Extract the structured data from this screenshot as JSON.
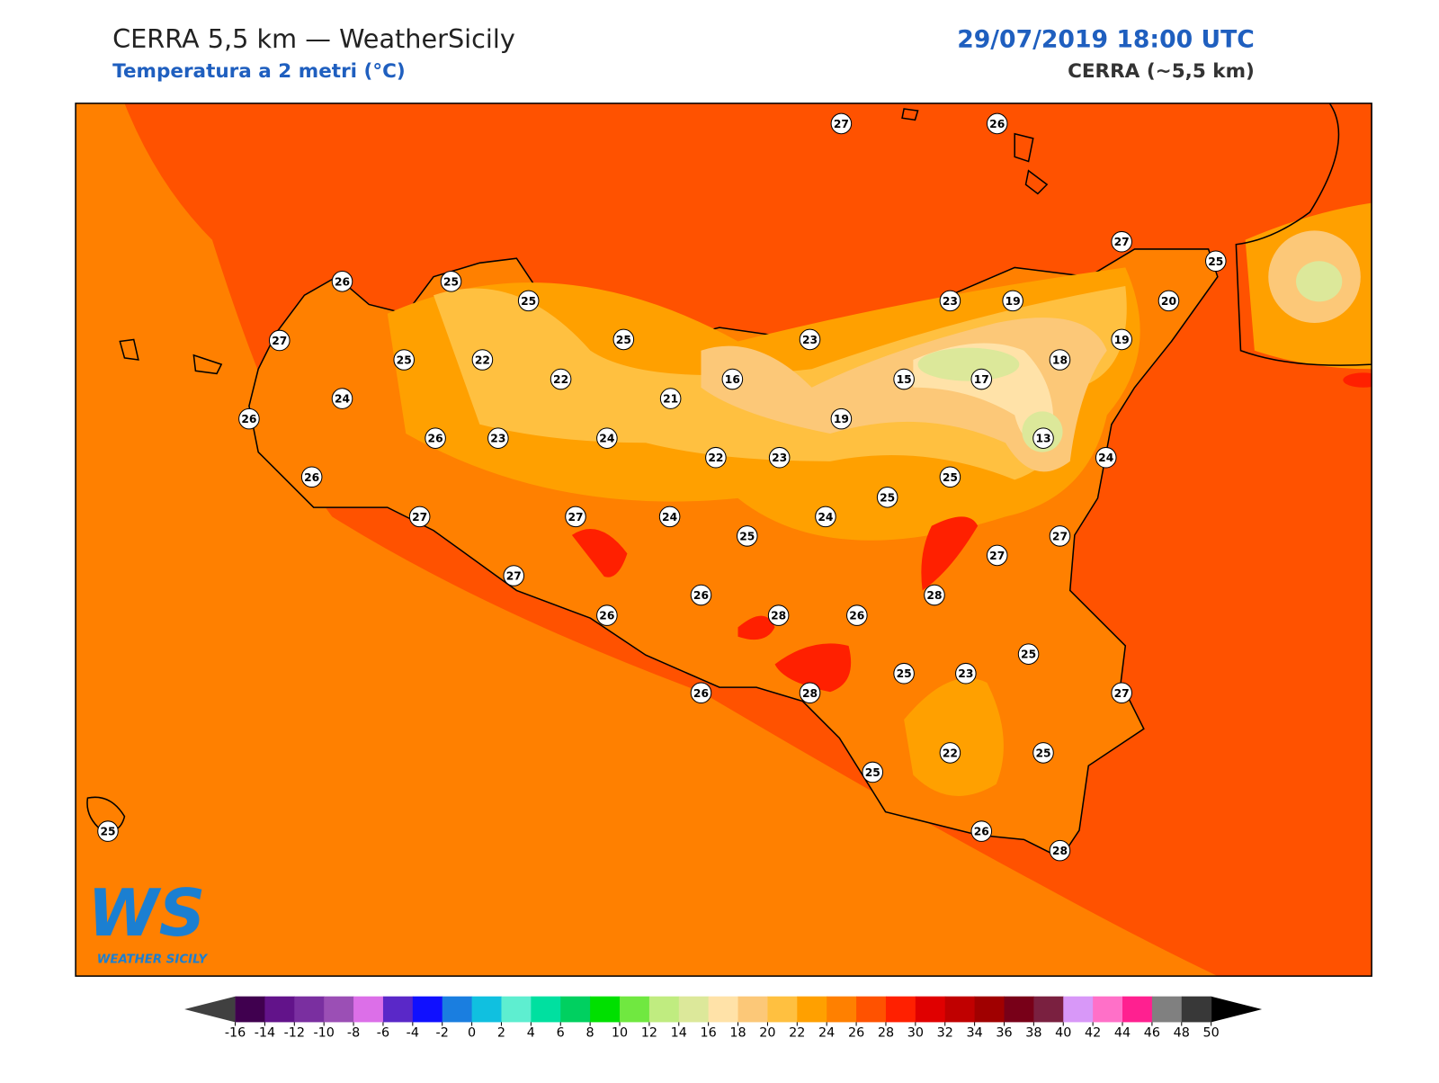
{
  "header": {
    "title": "CERRA 5,5 km — WeatherSicily",
    "subtitle": "Temperatura a 2 metri (°C)",
    "datetime": "29/07/2019 18:00 UTC",
    "model": "CERRA (~5,5 km)"
  },
  "stations": [
    27,
    26,
    26,
    25,
    25,
    27,
    25,
    22,
    25,
    22,
    24,
    21,
    16,
    23,
    26,
    26,
    23,
    24,
    22,
    23,
    19,
    15,
    17,
    23,
    19,
    27,
    25,
    20,
    19,
    18,
    13,
    24,
    25,
    25,
    24,
    26,
    27,
    27,
    24,
    25,
    27,
    27,
    27,
    26,
    26,
    28,
    26,
    28,
    25,
    25,
    23,
    27,
    26,
    28,
    22,
    25,
    25,
    26,
    28,
    25
  ],
  "logo": {
    "mark": "WS",
    "text": "WEATHER SICILY"
  },
  "colorbar": {
    "ticks": [
      -16,
      -14,
      -12,
      -10,
      -8,
      -6,
      -4,
      -2,
      0,
      2,
      4,
      6,
      8,
      10,
      12,
      14,
      16,
      18,
      20,
      22,
      24,
      26,
      28,
      30,
      32,
      34,
      36,
      38,
      40,
      42,
      44,
      46,
      48,
      50
    ],
    "colors": [
      "#40004f",
      "#62138a",
      "#7a2fa0",
      "#9b4fb5",
      "#dc6fe8",
      "#5a28c8",
      "#1010ff",
      "#1a7ee0",
      "#10c0e0",
      "#5eeed0",
      "#00e0a0",
      "#00d060",
      "#00e000",
      "#70e840",
      "#c0ec80",
      "#dce89a",
      "#ffe2a8",
      "#fcc878",
      "#ffc040",
      "#ffa000",
      "#ff8000",
      "#ff5200",
      "#ff2000",
      "#e00000",
      "#c00000",
      "#a00000",
      "#780018",
      "#7a2040",
      "#d898f8",
      "#ff70c8",
      "#ff2090",
      "#808080",
      "#383838"
    ],
    "under": "#404040",
    "over": "#000000"
  }
}
